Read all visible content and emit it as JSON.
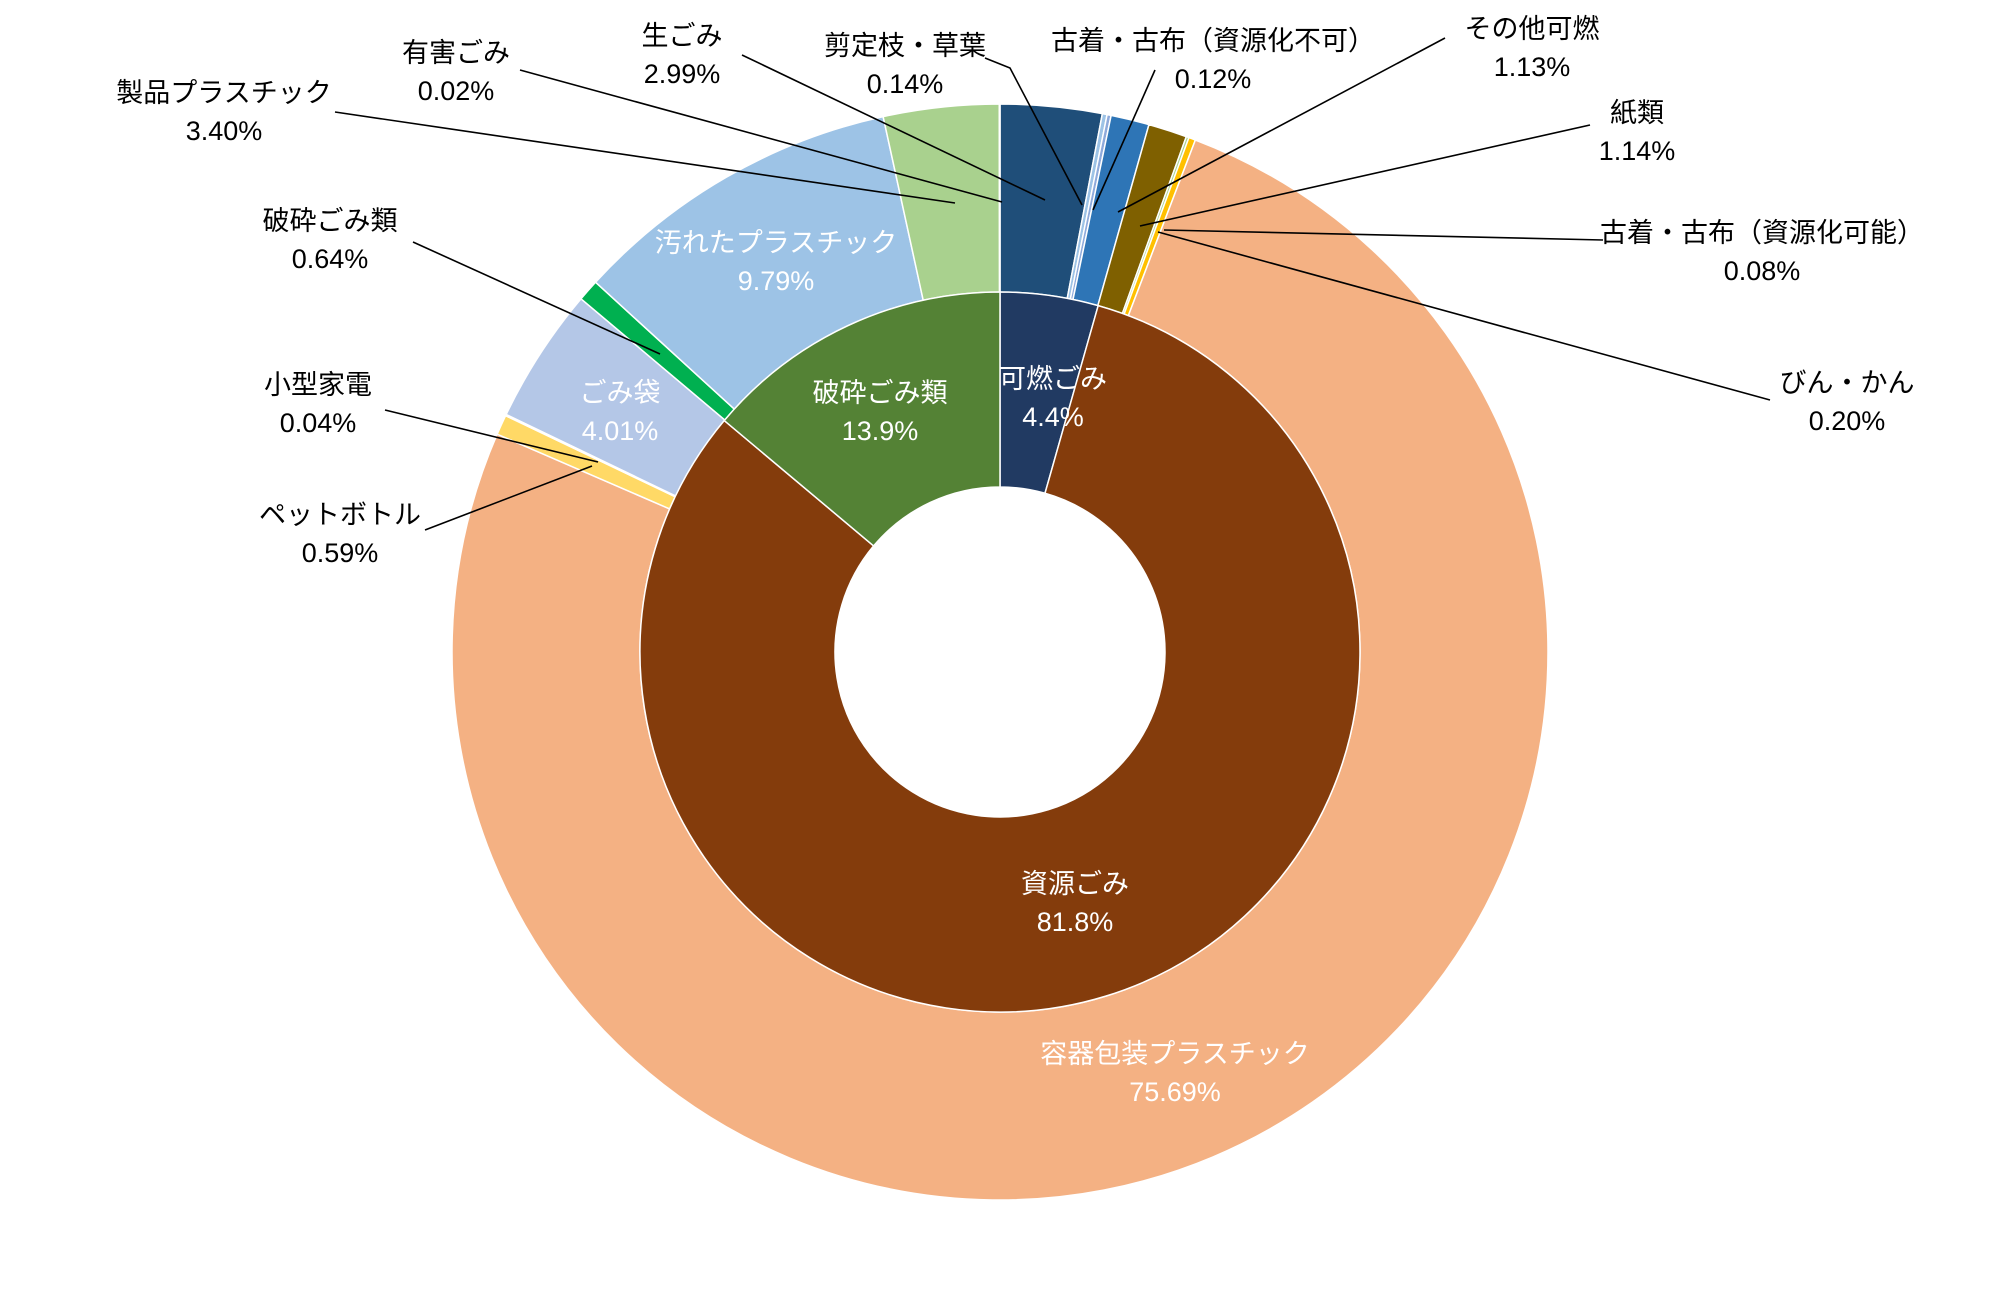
{
  "chart_data": {
    "type": "pie",
    "subtype": "double-donut",
    "title": "",
    "inner_ring": {
      "series": [
        {
          "name": "可燃ごみ",
          "value": 4.4,
          "label": "4.4%",
          "color": "#213a62"
        },
        {
          "name": "資源ごみ",
          "value": 81.8,
          "label": "81.8%",
          "color": "#843c0c"
        },
        {
          "name": "破砕ごみ類",
          "value": 13.9,
          "label": "13.9%",
          "color": "#548235"
        }
      ]
    },
    "outer_ring": {
      "series": [
        {
          "name": "生ごみ",
          "value": 2.99,
          "label": "2.99%",
          "color": "#1f4e79"
        },
        {
          "name": "剪定枝・草葉",
          "value": 0.14,
          "label": "0.14%",
          "color": "#9dc3e6"
        },
        {
          "name": "古着・古布（資源化不可）",
          "value": 0.12,
          "label": "0.12%",
          "color": "#8eaadb"
        },
        {
          "name": "その他可燃",
          "value": 1.13,
          "label": "1.13%",
          "color": "#2e75b6"
        },
        {
          "name": "紙類",
          "value": 1.14,
          "label": "1.14%",
          "color": "#7f6000"
        },
        {
          "name": "古着・古布（資源化可能）",
          "value": 0.08,
          "label": "0.08%",
          "color": "#a9d18e"
        },
        {
          "name": "びん・かん",
          "value": 0.2,
          "label": "0.20%",
          "color": "#ffc000"
        },
        {
          "name": "容器包装プラスチック",
          "value": 75.69,
          "label": "75.69%",
          "color": "#f4b183"
        },
        {
          "name": "ペットボトル",
          "value": 0.59,
          "label": "0.59%",
          "color": "#ffd966"
        },
        {
          "name": "小型家電",
          "value": 0.04,
          "label": "0.04%",
          "color": "#c55a11"
        },
        {
          "name": "ごみ袋",
          "value": 4.01,
          "label": "4.01%",
          "color": "#b4c7e7"
        },
        {
          "name": "破砕ごみ類",
          "value": 0.64,
          "label": "0.64%",
          "color": "#00b050"
        },
        {
          "name": "汚れたプラスチック",
          "value": 9.79,
          "label": "9.79%",
          "color": "#9dc3e6"
        },
        {
          "name": "製品プラスチック",
          "value": 3.4,
          "label": "3.40%",
          "color": "#a9d18e"
        },
        {
          "name": "有害ごみ",
          "value": 0.02,
          "label": "0.02%",
          "color": "#7030a0"
        }
      ]
    },
    "legend": "none"
  }
}
